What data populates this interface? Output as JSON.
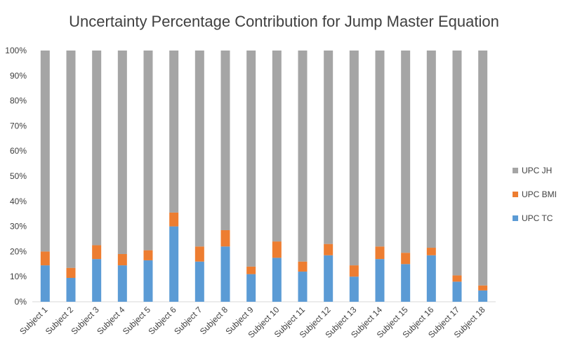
{
  "chart_data": {
    "type": "bar",
    "stacked": true,
    "title": "Uncertainty Percentage Contribution for Jump Master Equation",
    "xlabel": "",
    "ylabel": "",
    "ylim": [
      0,
      100
    ],
    "y_ticks": [
      "0%",
      "10%",
      "20%",
      "30%",
      "40%",
      "50%",
      "60%",
      "70%",
      "80%",
      "90%",
      "100%"
    ],
    "grid": false,
    "legend_position": "right",
    "categories": [
      "Subject 1",
      "Subject 2",
      "Subject 3",
      "Subject 4",
      "Subject 5",
      "Subject 6",
      "Subject 7",
      "Subject 8",
      "Subject 9",
      "Subject 10",
      "Subject 11",
      "Subject 12",
      "Subject 13",
      "Subject 14",
      "Subject 15",
      "Subject 16",
      "Subject 17",
      "Subject 18"
    ],
    "series": [
      {
        "name": "UPC TC",
        "color": "#5b9bd5",
        "values": [
          14.5,
          9.5,
          17,
          14.5,
          16.5,
          30,
          16,
          22,
          11,
          17.5,
          12,
          18.5,
          10,
          17,
          15,
          18.5,
          8,
          4.5
        ]
      },
      {
        "name": "UPC BMI",
        "color": "#ed7d31",
        "values": [
          5.5,
          4,
          5.5,
          4.5,
          4,
          5.5,
          6,
          6.5,
          3,
          6.5,
          4,
          4.5,
          4.5,
          5,
          4.5,
          3,
          2.5,
          2
        ]
      },
      {
        "name": "UPC JH",
        "color": "#a5a5a5",
        "values": [
          80,
          86.5,
          77.5,
          81,
          79.5,
          64.5,
          78,
          71.5,
          86,
          76,
          84,
          77,
          85.5,
          78,
          80.5,
          78.5,
          89.5,
          93.5
        ]
      }
    ],
    "legend_order": [
      "UPC JH",
      "UPC BMI",
      "UPC TC"
    ]
  }
}
